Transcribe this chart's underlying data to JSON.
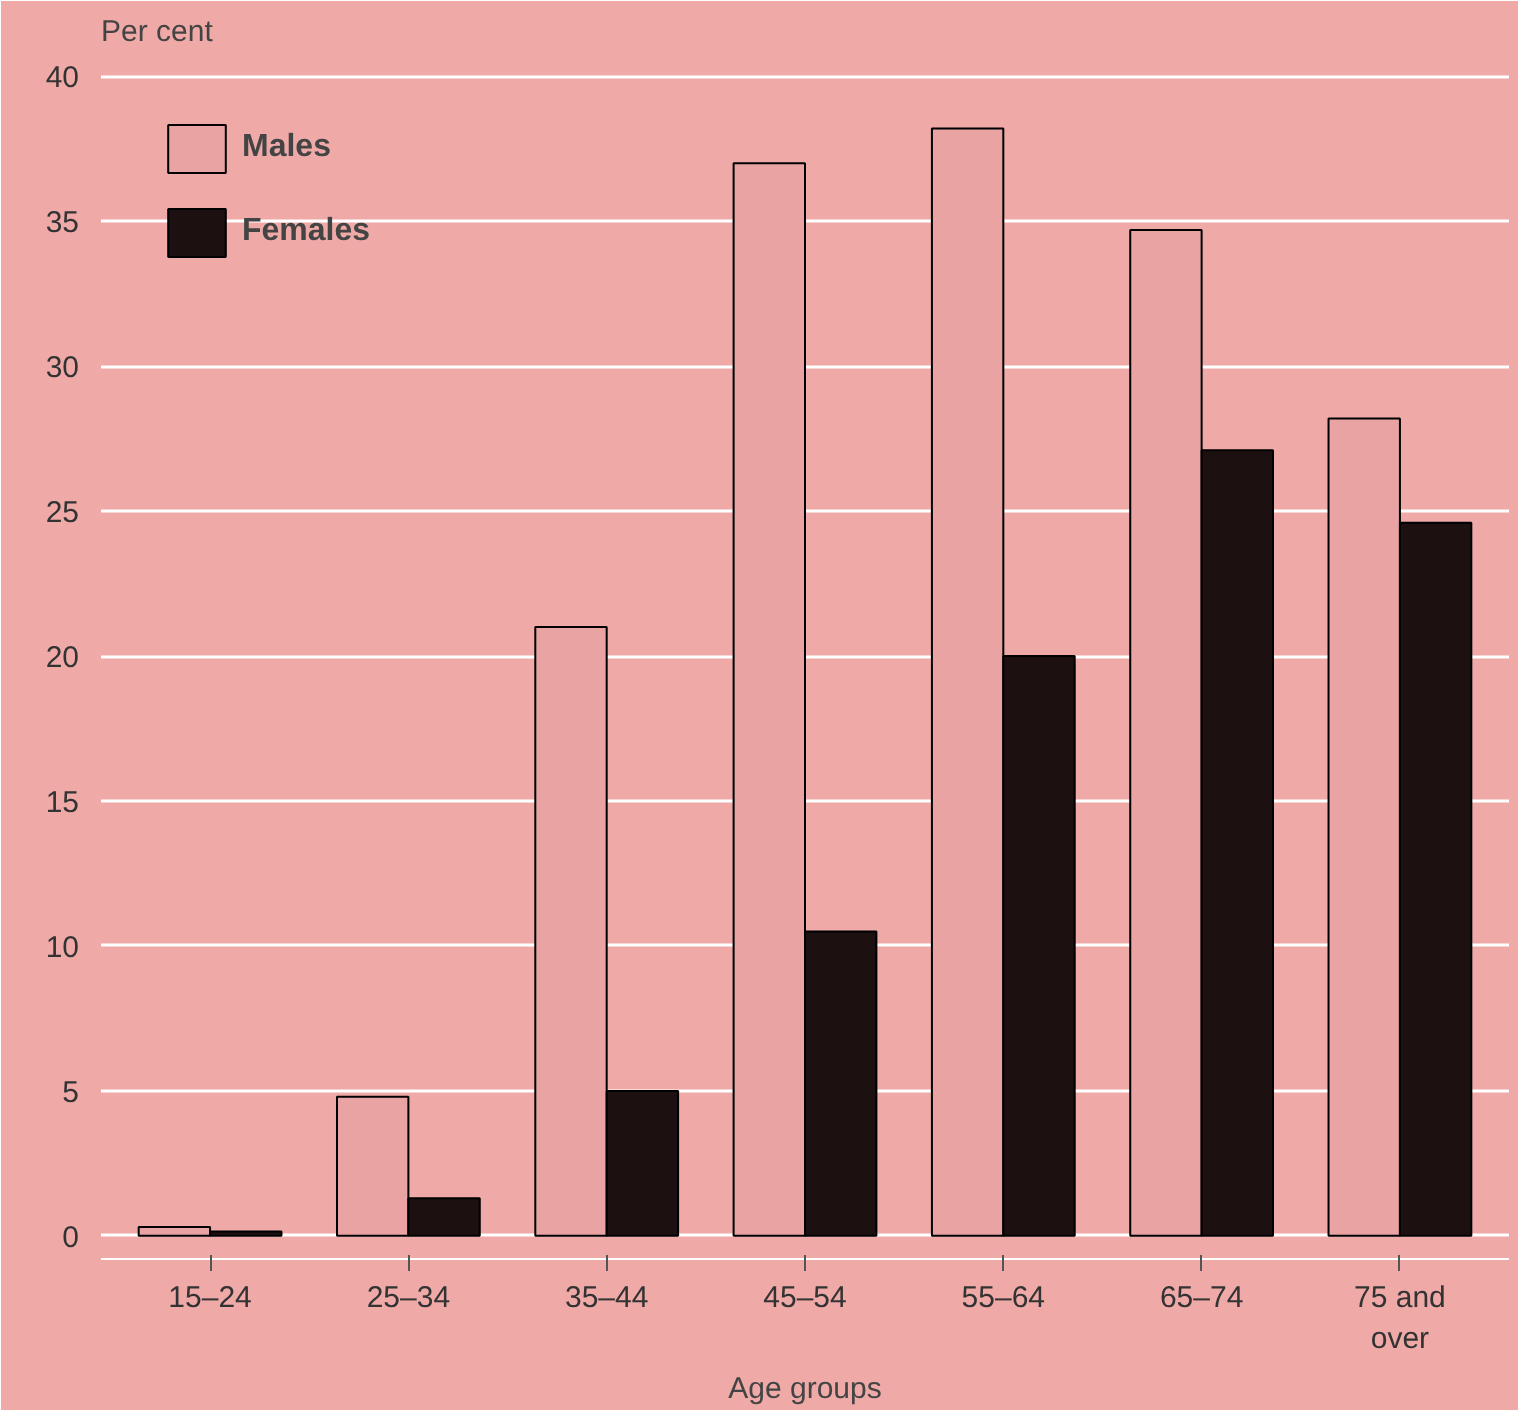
{
  "chart_data": {
    "type": "bar",
    "ylabel": "Per cent",
    "xlabel": "Age groups",
    "categories": [
      "15–24",
      "25–34",
      "35–44",
      "45–54",
      "55–64",
      "65–74",
      "75 and\nover"
    ],
    "series": [
      {
        "name": "Males",
        "color": "#e9a3a3",
        "values": [
          0.3,
          4.8,
          21.0,
          37.0,
          38.2,
          34.7,
          28.2
        ]
      },
      {
        "name": "Females",
        "color": "#1c1010",
        "values": [
          0.15,
          1.3,
          5.0,
          10.5,
          20.0,
          27.1,
          24.6
        ]
      }
    ],
    "ylim": [
      -0.8,
      40.6
    ],
    "yticks": [
      0,
      5,
      10,
      15,
      20,
      25,
      30,
      35,
      40
    ],
    "grid": "y",
    "legend": "top left"
  }
}
